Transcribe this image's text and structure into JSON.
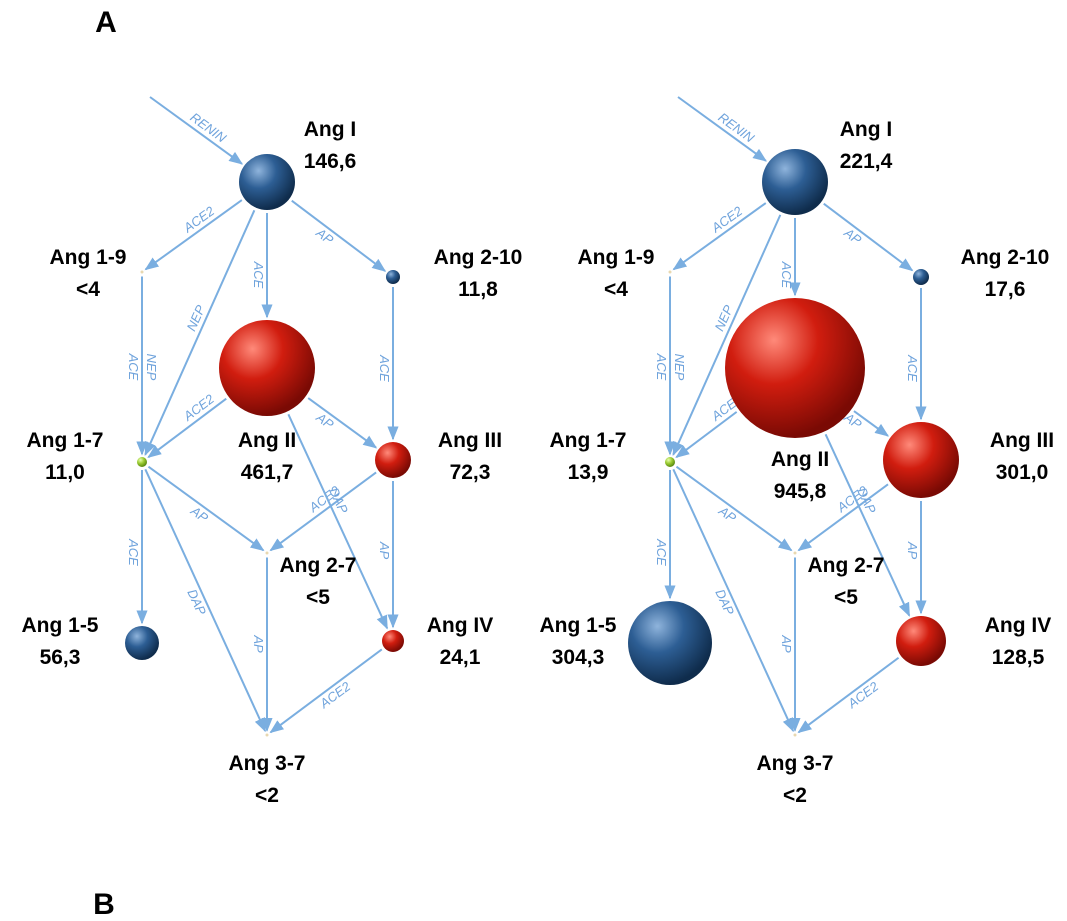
{
  "panel_labels": [
    "A",
    "B"
  ],
  "panels": [
    {
      "nodes": [
        {
          "label": "Ang I",
          "value": "146,6"
        },
        {
          "label": "Ang 1-9",
          "value": "<4"
        },
        {
          "label": "Ang 2-10",
          "value": "11,8"
        },
        {
          "label": "Ang II",
          "value": "461,7"
        },
        {
          "label": "Ang 1-7",
          "value": "11,0"
        },
        {
          "label": "Ang III",
          "value": "72,3"
        },
        {
          "label": "Ang 2-7",
          "value": "<5"
        },
        {
          "label": "Ang 1-5",
          "value": "56,3"
        },
        {
          "label": "Ang IV",
          "value": "24,1"
        },
        {
          "label": "Ang 3-7",
          "value": "<2"
        }
      ],
      "enzymes": [
        "RENIN",
        "ACE2",
        "AP",
        "ACE",
        "NEP",
        "ACE",
        "NEP",
        "ACE2",
        "AP",
        "ACE",
        "AP",
        "ACE",
        "DAP",
        "ACE2",
        "AP",
        "DAP",
        "AP",
        "ACE2"
      ]
    },
    {
      "nodes": [
        {
          "label": "Ang I",
          "value": "221,4"
        },
        {
          "label": "Ang 1-9",
          "value": "<4"
        },
        {
          "label": "Ang 2-10",
          "value": "17,6"
        },
        {
          "label": "Ang II",
          "value": "945,8"
        },
        {
          "label": "Ang 1-7",
          "value": "13,9"
        },
        {
          "label": "Ang III",
          "value": "301,0"
        },
        {
          "label": "Ang 2-7",
          "value": "<5"
        },
        {
          "label": "Ang 1-5",
          "value": "304,3"
        },
        {
          "label": "Ang IV",
          "value": "128,5"
        },
        {
          "label": "Ang 3-7",
          "value": "<2"
        }
      ],
      "enzymes": [
        "RENIN",
        "ACE2",
        "AP",
        "ACE",
        "NEP",
        "ACE",
        "NEP",
        "ACE2",
        "AP",
        "ACE",
        "AP",
        "ACE",
        "DAP",
        "ACE2",
        "AP",
        "DAP",
        "AP",
        "ACE2"
      ]
    }
  ]
}
